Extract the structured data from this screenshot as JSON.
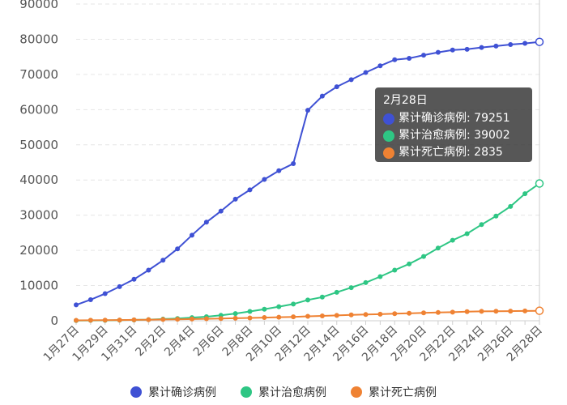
{
  "colors": {
    "confirmed": "#3f51d4",
    "cured": "#2ec684",
    "deaths": "#ef8233"
  },
  "chart_data": {
    "type": "line",
    "x": [
      "1月27日",
      "1月28日",
      "1月29日",
      "1月30日",
      "1月31日",
      "2月1日",
      "2月2日",
      "2月3日",
      "2月4日",
      "2月5日",
      "2月6日",
      "2月7日",
      "2月8日",
      "2月9日",
      "2月10日",
      "2月11日",
      "2月12日",
      "2月13日",
      "2月14日",
      "2月15日",
      "2月16日",
      "2月17日",
      "2月18日",
      "2月19日",
      "2月20日",
      "2月21日",
      "2月22日",
      "2月23日",
      "2月24日",
      "2月25日",
      "2月26日",
      "2月27日",
      "2月28日"
    ],
    "x_tick_labels": [
      "1月27日",
      "1月29日",
      "1月31日",
      "2月2日",
      "2月4日",
      "2月6日",
      "2月8日",
      "2月10日",
      "2月12日",
      "2月14日",
      "2月16日",
      "2月18日",
      "2月20日",
      "2月22日",
      "2月24日",
      "2月26日",
      "2月28日"
    ],
    "y_ticks": [
      "0",
      "10000",
      "20000",
      "30000",
      "40000",
      "50000",
      "60000",
      "70000",
      "80000",
      "90000"
    ],
    "ylim": [
      0,
      90000
    ],
    "grid": "horizontal dashed",
    "legend_position": "bottom",
    "series": [
      {
        "name": "累计确诊病例",
        "key": "confirmed",
        "values": [
          4515,
          5974,
          7711,
          9692,
          11791,
          14380,
          17205,
          20438,
          24324,
          28018,
          31161,
          34546,
          37198,
          40171,
          42638,
          44653,
          59804,
          63851,
          66492,
          68500,
          70548,
          72436,
          74185,
          74576,
          75465,
          76288,
          76936,
          77150,
          77658,
          78064,
          78497,
          78824,
          79251
        ]
      },
      {
        "name": "累计治愈病例",
        "key": "cured",
        "values": [
          60,
          103,
          124,
          171,
          243,
          328,
          475,
          632,
          892,
          1153,
          1540,
          2050,
          2649,
          3281,
          3996,
          4740,
          5911,
          6723,
          8096,
          9419,
          10844,
          12552,
          14376,
          16155,
          18264,
          20659,
          22888,
          24734,
          27323,
          29745,
          32495,
          36117,
          39002
        ]
      },
      {
        "name": "累计死亡病例",
        "key": "deaths",
        "values": [
          106,
          132,
          170,
          213,
          259,
          304,
          361,
          425,
          490,
          563,
          636,
          722,
          811,
          908,
          1016,
          1113,
          1259,
          1380,
          1523,
          1665,
          1770,
          1868,
          2004,
          2118,
          2236,
          2345,
          2442,
          2592,
          2663,
          2715,
          2744,
          2788,
          2835
        ]
      }
    ],
    "tooltip": {
      "title": "2月28日",
      "rows": [
        {
          "key": "confirmed",
          "label": "累计确诊病例",
          "value": "79251"
        },
        {
          "key": "cured",
          "label": "累计治愈病例",
          "value": "39002"
        },
        {
          "key": "deaths",
          "label": "累计死亡病例",
          "value": "2835"
        }
      ]
    }
  }
}
